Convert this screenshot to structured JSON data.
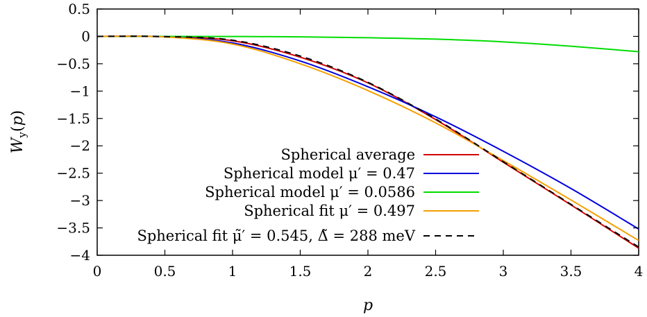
{
  "chart_data": {
    "type": "line",
    "title": "",
    "xlabel": "p",
    "ylabel": "W_y(p)",
    "xlim": [
      0,
      4
    ],
    "ylim": [
      -4,
      0.5
    ],
    "xticks": [
      0,
      0.5,
      1,
      1.5,
      2,
      2.5,
      3,
      3.5,
      4
    ],
    "yticks": [
      0.5,
      0,
      -0.5,
      -1,
      -1.5,
      -2,
      -2.5,
      -3,
      -3.5,
      -4
    ],
    "xtick_labels": [
      "0",
      "0.5",
      "1",
      "1.5",
      "2",
      "2.5",
      "3",
      "3.5",
      "4"
    ],
    "ytick_labels": [
      "0.5",
      "0",
      "−0.5",
      "−1",
      "−1.5",
      "−2",
      "−2.5",
      "−3",
      "−3.5",
      "−4"
    ],
    "grid": false,
    "legend_position": "bottom-center",
    "x": [
      0,
      0.5,
      1,
      1.5,
      2,
      2.5,
      3,
      3.5,
      4
    ],
    "series": [
      {
        "name": "Spherical average",
        "color": "#d40000",
        "dash": "solid",
        "values": [
          0,
          -0.005,
          -0.08,
          -0.38,
          -0.85,
          -1.52,
          -2.3,
          -3.08,
          -3.87
        ]
      },
      {
        "name": "Spherical model μ′ = 0.47",
        "color": "#0000e0",
        "dash": "solid",
        "values": [
          0,
          -0.008,
          -0.12,
          -0.45,
          -0.92,
          -1.47,
          -2.1,
          -2.78,
          -3.52
        ]
      },
      {
        "name": "Spherical model μ′ = 0.0586",
        "color": "#00dd00",
        "dash": "solid",
        "values": [
          0,
          0,
          -0.002,
          -0.008,
          -0.025,
          -0.05,
          -0.1,
          -0.18,
          -0.28
        ]
      },
      {
        "name": "Spherical fit μ′ = 0.497",
        "color": "#f5a000",
        "dash": "solid",
        "values": [
          0,
          -0.01,
          -0.14,
          -0.5,
          -0.99,
          -1.58,
          -2.27,
          -2.99,
          -3.73
        ]
      },
      {
        "name": "Spherical fit μ̃′ = 0.545, Δ̃ = 288 meV",
        "color": "#000000",
        "dash": "dashed",
        "values": [
          0,
          -0.004,
          -0.07,
          -0.36,
          -0.84,
          -1.51,
          -2.29,
          -3.07,
          -3.85
        ]
      }
    ]
  }
}
